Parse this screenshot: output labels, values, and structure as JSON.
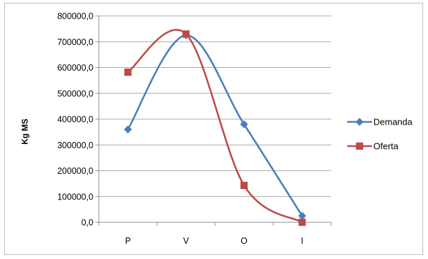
{
  "chart_data": {
    "type": "line",
    "categories": [
      "P",
      "V",
      "O",
      "I"
    ],
    "ylabel": "Kg MS",
    "ylim": [
      0,
      800000
    ],
    "yticks": [
      "0,0",
      "100000,0",
      "200000,0",
      "300000,0",
      "400000,0",
      "500000,0",
      "600000,0",
      "700000,0",
      "800000,0"
    ],
    "grid": true,
    "smooth": true,
    "legend": "right",
    "series": [
      {
        "name": "Demanda",
        "values": [
          360000,
          725000,
          380000,
          25000
        ],
        "color": "#4a7ebb",
        "marker": "diamond"
      },
      {
        "name": "Oferta",
        "values": [
          582000,
          730000,
          143000,
          0
        ],
        "color": "#be4b48",
        "marker": "square"
      }
    ]
  }
}
